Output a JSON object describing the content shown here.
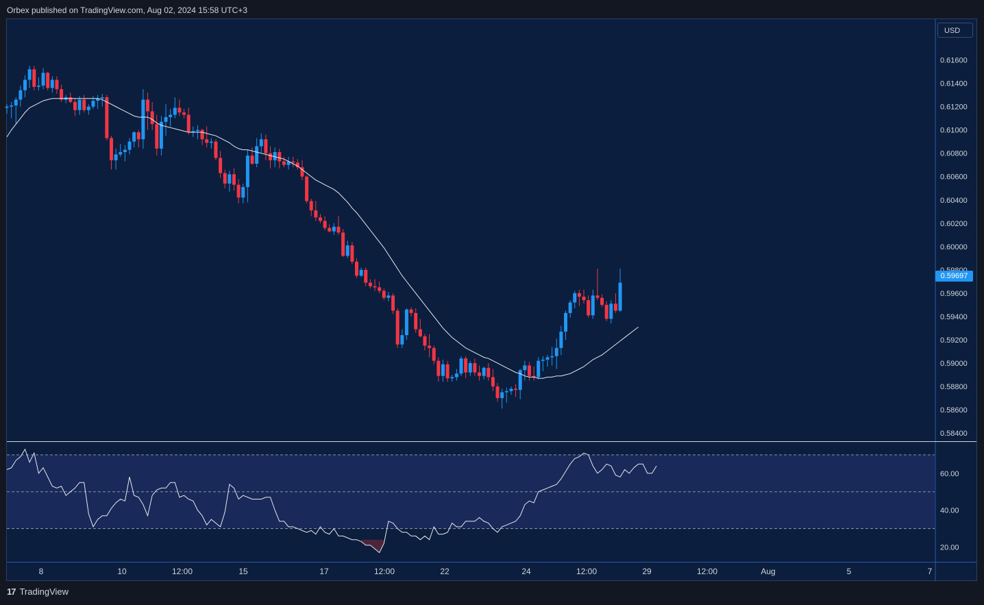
{
  "header": {
    "attribution": "Orbex published on TradingView.com, Aug 02, 2024 15:58 UTC+3"
  },
  "footer": {
    "brand": "TradingView",
    "logo_text": "17"
  },
  "currency": "USD",
  "last_price": "0.59697",
  "colors": {
    "bull": "#2196f3",
    "bear": "#f23645",
    "ma": "#e6e9f0",
    "rsi": "#e6e9f0",
    "background": "#0b1e3d"
  },
  "icons": {
    "brand": "tradingview-logo-icon"
  },
  "chart_data": [
    {
      "type": "candlestick",
      "y_ticks": [
        "0.61600",
        "0.61400",
        "0.61200",
        "0.61000",
        "0.60800",
        "0.60600",
        "0.60400",
        "0.60200",
        "0.60000",
        "0.59800",
        "0.59600",
        "0.59400",
        "0.59200",
        "0.59000",
        "0.58800",
        "0.58600",
        "0.58400"
      ],
      "ylim": [
        0.5833,
        0.6195
      ],
      "x_ticks": [
        "8",
        "10",
        "12:00",
        "15",
        "17",
        "12:00",
        "22",
        "24",
        "12:00",
        "29",
        "12:00",
        "Aug",
        "5",
        "7"
      ],
      "ohlc": [
        [
          0.6119,
          0.6122,
          0.6114,
          0.612
        ],
        [
          0.612,
          0.6124,
          0.611,
          0.6121
        ],
        [
          0.6121,
          0.6128,
          0.6105,
          0.6126
        ],
        [
          0.6126,
          0.6138,
          0.612,
          0.6134
        ],
        [
          0.6134,
          0.6147,
          0.6128,
          0.6143
        ],
        [
          0.6143,
          0.6155,
          0.6136,
          0.6152
        ],
        [
          0.6152,
          0.6155,
          0.6134,
          0.6137
        ],
        [
          0.6137,
          0.6145,
          0.6134,
          0.6138
        ],
        [
          0.6138,
          0.6153,
          0.6135,
          0.6149
        ],
        [
          0.6149,
          0.615,
          0.6134,
          0.6136
        ],
        [
          0.6136,
          0.6146,
          0.6132,
          0.6143
        ],
        [
          0.6143,
          0.6146,
          0.6131,
          0.6135
        ],
        [
          0.6135,
          0.6139,
          0.6124,
          0.6126
        ],
        [
          0.6126,
          0.613,
          0.6123,
          0.6128
        ],
        [
          0.6128,
          0.6132,
          0.6123,
          0.6124
        ],
        [
          0.6124,
          0.6127,
          0.6112,
          0.6117
        ],
        [
          0.6117,
          0.6129,
          0.6113,
          0.6126
        ],
        [
          0.6126,
          0.613,
          0.6115,
          0.6117
        ],
        [
          0.6117,
          0.6122,
          0.6113,
          0.612
        ],
        [
          0.612,
          0.6129,
          0.6118,
          0.6125
        ],
        [
          0.6125,
          0.613,
          0.6118,
          0.6127
        ],
        [
          0.6127,
          0.6131,
          0.612,
          0.6128
        ],
        [
          0.6128,
          0.613,
          0.6091,
          0.6093
        ],
        [
          0.6093,
          0.6095,
          0.6066,
          0.6074
        ],
        [
          0.6074,
          0.6084,
          0.6066,
          0.6079
        ],
        [
          0.6079,
          0.6088,
          0.6077,
          0.6081
        ],
        [
          0.6081,
          0.6087,
          0.6073,
          0.6083
        ],
        [
          0.6083,
          0.6093,
          0.6079,
          0.609
        ],
        [
          0.609,
          0.6099,
          0.6085,
          0.6098
        ],
        [
          0.6098,
          0.61,
          0.6085,
          0.6092
        ],
        [
          0.6092,
          0.6135,
          0.6084,
          0.6126
        ],
        [
          0.6126,
          0.6132,
          0.61,
          0.6116
        ],
        [
          0.6116,
          0.6124,
          0.61,
          0.6105
        ],
        [
          0.6105,
          0.6113,
          0.6078,
          0.6084
        ],
        [
          0.6084,
          0.6112,
          0.6078,
          0.6107
        ],
        [
          0.6107,
          0.6122,
          0.6095,
          0.6111
        ],
        [
          0.6111,
          0.6118,
          0.6103,
          0.6113
        ],
        [
          0.6113,
          0.6128,
          0.611,
          0.6119
        ],
        [
          0.6119,
          0.6126,
          0.6112,
          0.6115
        ],
        [
          0.6115,
          0.6118,
          0.611,
          0.6113
        ],
        [
          0.6113,
          0.6119,
          0.6096,
          0.6098
        ],
        [
          0.6098,
          0.6103,
          0.6094,
          0.6099
        ],
        [
          0.6099,
          0.6104,
          0.6092,
          0.61
        ],
        [
          0.61,
          0.6101,
          0.6087,
          0.6092
        ],
        [
          0.6092,
          0.6103,
          0.6085,
          0.6089
        ],
        [
          0.6089,
          0.6093,
          0.6084,
          0.609
        ],
        [
          0.609,
          0.6092,
          0.6074,
          0.6076
        ],
        [
          0.6076,
          0.6082,
          0.6059,
          0.6063
        ],
        [
          0.6063,
          0.6066,
          0.605,
          0.6054
        ],
        [
          0.6054,
          0.6065,
          0.6047,
          0.6062
        ],
        [
          0.6062,
          0.6067,
          0.6048,
          0.6053
        ],
        [
          0.6053,
          0.6058,
          0.6037,
          0.6042
        ],
        [
          0.6042,
          0.6054,
          0.6037,
          0.6051
        ],
        [
          0.6051,
          0.6083,
          0.6038,
          0.6078
        ],
        [
          0.6078,
          0.6085,
          0.607,
          0.6071
        ],
        [
          0.6071,
          0.6093,
          0.6068,
          0.6086
        ],
        [
          0.6086,
          0.6097,
          0.608,
          0.6092
        ],
        [
          0.6092,
          0.6096,
          0.6074,
          0.608
        ],
        [
          0.608,
          0.6086,
          0.6067,
          0.6074
        ],
        [
          0.6074,
          0.6085,
          0.6068,
          0.6081
        ],
        [
          0.6081,
          0.6084,
          0.6067,
          0.6073
        ],
        [
          0.6073,
          0.6077,
          0.6068,
          0.607
        ],
        [
          0.607,
          0.6077,
          0.6066,
          0.6073
        ],
        [
          0.6073,
          0.6077,
          0.6068,
          0.6072
        ],
        [
          0.6072,
          0.6075,
          0.6066,
          0.6068
        ],
        [
          0.6068,
          0.6074,
          0.6057,
          0.606
        ],
        [
          0.606,
          0.6061,
          0.6037,
          0.6039
        ],
        [
          0.6039,
          0.6041,
          0.6026,
          0.6031
        ],
        [
          0.6031,
          0.6039,
          0.6022,
          0.6025
        ],
        [
          0.6025,
          0.6028,
          0.602,
          0.6022
        ],
        [
          0.6022,
          0.6026,
          0.6014,
          0.6016
        ],
        [
          0.6016,
          0.6019,
          0.6012,
          0.6013
        ],
        [
          0.6013,
          0.602,
          0.601,
          0.6017
        ],
        [
          0.6017,
          0.6026,
          0.601,
          0.6012
        ],
        [
          0.6012,
          0.6015,
          0.5991,
          0.5992
        ],
        [
          0.5992,
          0.6005,
          0.599,
          0.6001
        ],
        [
          0.6001,
          0.6004,
          0.5985,
          0.5987
        ],
        [
          0.5987,
          0.599,
          0.5973,
          0.5975
        ],
        [
          0.5975,
          0.5982,
          0.5974,
          0.598
        ],
        [
          0.598,
          0.5982,
          0.5966,
          0.5969
        ],
        [
          0.5969,
          0.5972,
          0.5964,
          0.5966
        ],
        [
          0.5966,
          0.5972,
          0.5962,
          0.5965
        ],
        [
          0.5965,
          0.597,
          0.596,
          0.5962
        ],
        [
          0.5962,
          0.5964,
          0.5954,
          0.5956
        ],
        [
          0.5956,
          0.5961,
          0.5953,
          0.5958
        ],
        [
          0.5958,
          0.596,
          0.5942,
          0.5945
        ],
        [
          0.5945,
          0.5947,
          0.5913,
          0.5916
        ],
        [
          0.5916,
          0.5929,
          0.5913,
          0.5924
        ],
        [
          0.5924,
          0.5947,
          0.592,
          0.5946
        ],
        [
          0.5946,
          0.5948,
          0.594,
          0.5943
        ],
        [
          0.5943,
          0.5947,
          0.5926,
          0.5929
        ],
        [
          0.5929,
          0.5938,
          0.5922,
          0.5923
        ],
        [
          0.5923,
          0.5925,
          0.5911,
          0.5915
        ],
        [
          0.5915,
          0.5925,
          0.5905,
          0.5913
        ],
        [
          0.5913,
          0.5915,
          0.5899,
          0.5902
        ],
        [
          0.5902,
          0.5905,
          0.5884,
          0.5889
        ],
        [
          0.5889,
          0.5903,
          0.5884,
          0.5899
        ],
        [
          0.5899,
          0.5902,
          0.5884,
          0.5887
        ],
        [
          0.5887,
          0.589,
          0.5884,
          0.5888
        ],
        [
          0.5888,
          0.5895,
          0.5885,
          0.5891
        ],
        [
          0.5891,
          0.5906,
          0.5889,
          0.5904
        ],
        [
          0.5904,
          0.5906,
          0.5887,
          0.5892
        ],
        [
          0.5892,
          0.5902,
          0.5889,
          0.59
        ],
        [
          0.59,
          0.5904,
          0.5889,
          0.5892
        ],
        [
          0.5892,
          0.5898,
          0.5885,
          0.5889
        ],
        [
          0.5889,
          0.5897,
          0.5886,
          0.5896
        ],
        [
          0.5896,
          0.59,
          0.5885,
          0.5888
        ],
        [
          0.5888,
          0.5895,
          0.5876,
          0.588
        ],
        [
          0.588,
          0.5883,
          0.5867,
          0.587
        ],
        [
          0.587,
          0.5878,
          0.5861,
          0.5875
        ],
        [
          0.5875,
          0.5879,
          0.5866,
          0.5876
        ],
        [
          0.5876,
          0.588,
          0.5873,
          0.5878
        ],
        [
          0.5878,
          0.5882,
          0.5871,
          0.5877
        ],
        [
          0.5877,
          0.5895,
          0.5869,
          0.5894
        ],
        [
          0.5894,
          0.5902,
          0.5885,
          0.5898
        ],
        [
          0.5898,
          0.5901,
          0.5885,
          0.5889
        ],
        [
          0.5889,
          0.5897,
          0.5885,
          0.5888
        ],
        [
          0.5888,
          0.5905,
          0.5886,
          0.5902
        ],
        [
          0.5902,
          0.5906,
          0.5893,
          0.5903
        ],
        [
          0.5903,
          0.5907,
          0.5897,
          0.5905
        ],
        [
          0.5905,
          0.5914,
          0.5898,
          0.5906
        ],
        [
          0.5906,
          0.5921,
          0.5895,
          0.5913
        ],
        [
          0.5913,
          0.5932,
          0.5907,
          0.5927
        ],
        [
          0.5927,
          0.5945,
          0.592,
          0.5943
        ],
        [
          0.5943,
          0.5954,
          0.5939,
          0.5952
        ],
        [
          0.5952,
          0.5962,
          0.5947,
          0.596
        ],
        [
          0.596,
          0.5963,
          0.5949,
          0.5957
        ],
        [
          0.5957,
          0.5963,
          0.5951,
          0.5954
        ],
        [
          0.5954,
          0.5958,
          0.5939,
          0.5941
        ],
        [
          0.5941,
          0.5963,
          0.5938,
          0.5958
        ],
        [
          0.5958,
          0.5981,
          0.5954,
          0.5956
        ],
        [
          0.5956,
          0.5959,
          0.5948,
          0.595
        ],
        [
          0.595,
          0.5953,
          0.5936,
          0.5938
        ],
        [
          0.5938,
          0.5954,
          0.5934,
          0.5951
        ],
        [
          0.5951,
          0.596,
          0.5943,
          0.5945
        ],
        [
          0.5945,
          0.5981,
          0.5944,
          0.5969
        ]
      ],
      "series": [
        {
          "type": "line",
          "values": [
            0.6094,
            0.61,
            0.6105,
            0.611,
            0.6115,
            0.6119,
            0.6121,
            0.6123,
            0.6125,
            0.6126,
            0.6127,
            0.6127,
            0.6127,
            0.6127,
            0.6127,
            0.6127,
            0.6127,
            0.6127,
            0.6127,
            0.6127,
            0.6127,
            0.6126,
            0.6124,
            0.6122,
            0.612,
            0.6118,
            0.6116,
            0.6114,
            0.6112,
            0.6111,
            0.6111,
            0.6111,
            0.6109,
            0.6106,
            0.6104,
            0.6103,
            0.6102,
            0.6101,
            0.61,
            0.6099,
            0.6098,
            0.6098,
            0.6098,
            0.6098,
            0.6097,
            0.6096,
            0.6095,
            0.6093,
            0.6091,
            0.6089,
            0.6086,
            0.6084,
            0.6083,
            0.6083,
            0.6082,
            0.6081,
            0.608,
            0.6079,
            0.6078,
            0.6077,
            0.6076,
            0.6075,
            0.6073,
            0.6071,
            0.6069,
            0.6066,
            0.6063,
            0.606,
            0.6057,
            0.6055,
            0.6053,
            0.6051,
            0.6049,
            0.6046,
            0.6042,
            0.6038,
            0.6033,
            0.6029,
            0.6024,
            0.6019,
            0.6014,
            0.6009,
            0.6004,
            0.5999,
            0.5993,
            0.5987,
            0.5981,
            0.5975,
            0.597,
            0.5965,
            0.596,
            0.5955,
            0.595,
            0.5945,
            0.594,
            0.5935,
            0.593,
            0.5926,
            0.5922,
            0.5919,
            0.5916,
            0.5913,
            0.5911,
            0.5909,
            0.5907,
            0.5905,
            0.5904,
            0.5902,
            0.59,
            0.5898,
            0.5896,
            0.5894,
            0.5892,
            0.5891,
            0.5889,
            0.5888,
            0.5888,
            0.5887,
            0.5887,
            0.5888,
            0.5888,
            0.5889,
            0.5889,
            0.589,
            0.5891,
            0.5893,
            0.5895,
            0.5897,
            0.59,
            0.5903,
            0.5905,
            0.5907,
            0.591,
            0.5913,
            0.5916,
            0.5919,
            0.5922,
            0.5925,
            0.5928,
            0.5931
          ]
        }
      ]
    },
    {
      "type": "line",
      "y_ticks": [
        "60.00",
        "40.00",
        "20.00"
      ],
      "ylim": [
        12,
        77
      ],
      "levels": [
        70,
        50,
        30
      ],
      "values": [
        62,
        63,
        67,
        69,
        73,
        66,
        71,
        60,
        63,
        58,
        53,
        52,
        53,
        48,
        50,
        52,
        55,
        55,
        38,
        31,
        35,
        37,
        37,
        41,
        44,
        46,
        45,
        58,
        48,
        47,
        43,
        37,
        48,
        51,
        52,
        52,
        55,
        55,
        47,
        48,
        46,
        45,
        40,
        37,
        32,
        35,
        33,
        31,
        39,
        54,
        52,
        46,
        48,
        47,
        46,
        46,
        46,
        47,
        47,
        40,
        34,
        34,
        31,
        31,
        30,
        29,
        28,
        29,
        27,
        31,
        28,
        27,
        30,
        26,
        26,
        25,
        24,
        24,
        23,
        21,
        21,
        19,
        17,
        22,
        34,
        33,
        30,
        28,
        28,
        26,
        26,
        24,
        26,
        24,
        31,
        27,
        27,
        28,
        33,
        31,
        31,
        34,
        34,
        34,
        36,
        34,
        33,
        30,
        28,
        31,
        32,
        33,
        34,
        37,
        43,
        45,
        44,
        50,
        51,
        52,
        53,
        54,
        57,
        61,
        65,
        68,
        69,
        71,
        70,
        64,
        60,
        62,
        65,
        64,
        59,
        58,
        62,
        60,
        63,
        65,
        65,
        60,
        60,
        64
      ]
    }
  ]
}
